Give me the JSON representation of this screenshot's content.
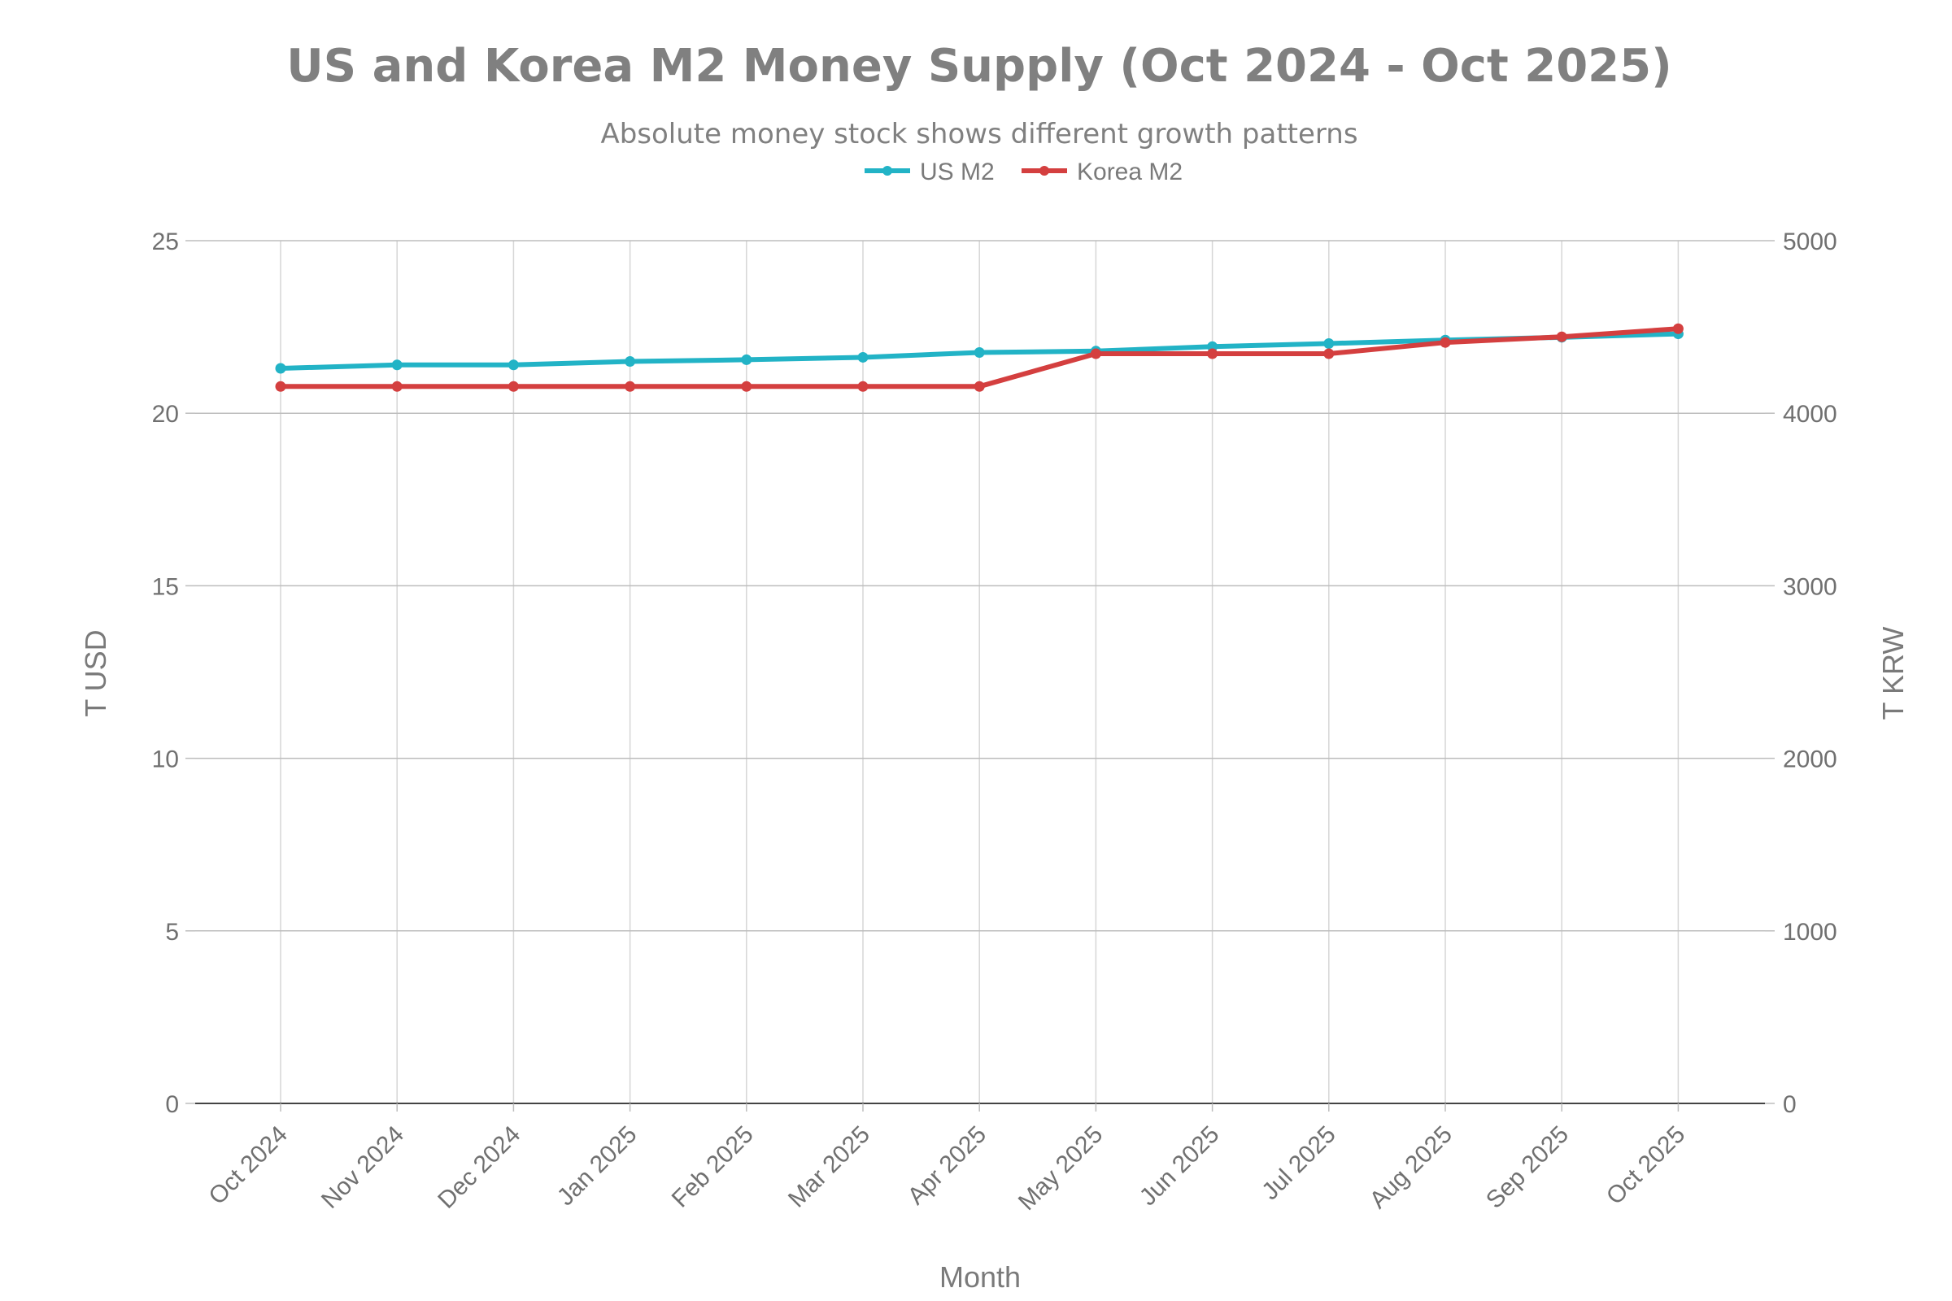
{
  "chart_data": {
    "type": "line",
    "title": "US and Korea M2 Money Supply (Oct 2024 - Oct 2025)",
    "subtitle": "Absolute money stock shows different growth patterns",
    "xlabel": "Month",
    "ylabel_left": "T USD",
    "ylabel_right": "T KRW",
    "categories": [
      "Oct 2024",
      "Nov 2024",
      "Dec 2024",
      "Jan 2025",
      "Feb 2025",
      "Mar 2025",
      "Apr 2025",
      "May 2025",
      "Jun 2025",
      "Jul 2025",
      "Aug 2025",
      "Sep 2025",
      "Oct 2025"
    ],
    "ylim_left": [
      0,
      25
    ],
    "ylim_right": [
      0,
      5000
    ],
    "yticks_left": [
      0,
      5,
      10,
      15,
      20,
      25
    ],
    "yticks_right": [
      0,
      1000,
      2000,
      3000,
      4000,
      5000
    ],
    "grid": true,
    "legend_position": "top-center",
    "series": [
      {
        "name": "US M2",
        "axis": "left",
        "color": "#22b3c6",
        "values": [
          21.3,
          21.4,
          21.4,
          21.5,
          21.55,
          21.62,
          21.76,
          21.8,
          21.93,
          22.02,
          22.12,
          22.2,
          22.3
        ]
      },
      {
        "name": "Korea M2",
        "axis": "right",
        "color": "#d43f3f",
        "values": [
          4155,
          4155,
          4155,
          4155,
          4155,
          4155,
          4155,
          4345,
          4345,
          4345,
          4410,
          4443,
          4490
        ]
      }
    ]
  }
}
